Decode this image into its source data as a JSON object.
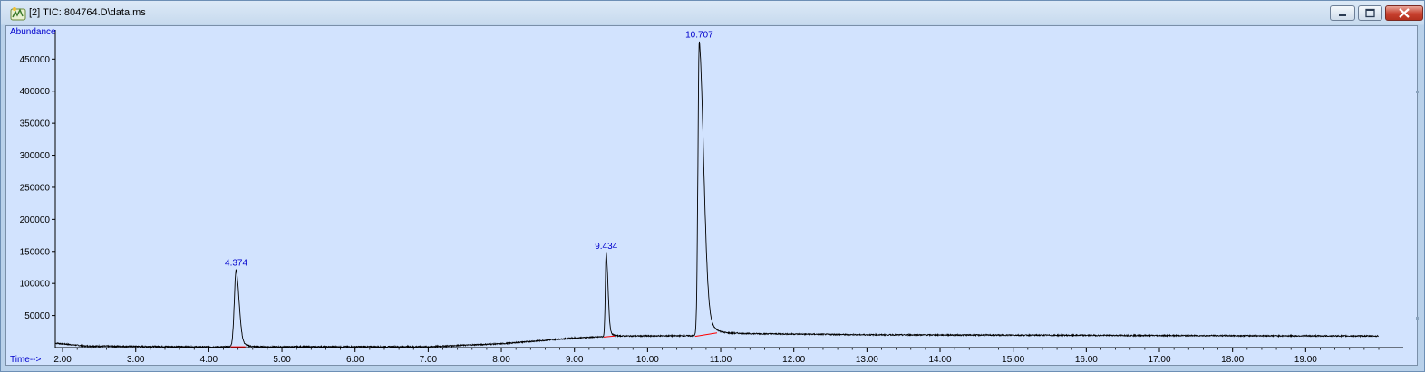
{
  "window": {
    "title": "[2] TIC: 804764.D\\data.ms",
    "icon": "chromatogram-app-icon"
  },
  "colors": {
    "plot_bg": "#d2e3fe",
    "label_blue": "#0000cc",
    "trace": "#000000",
    "baseline": "#ff0000",
    "close_red": "#c7402e"
  },
  "chart_data": {
    "type": "line",
    "ylabel": "Abundance",
    "xlabel": "Time-->",
    "xlim": [
      1.9,
      20.0
    ],
    "ylim": [
      0,
      490000
    ],
    "x_ticks": [
      "2.00",
      "3.00",
      "4.00",
      "5.00",
      "6.00",
      "7.00",
      "8.00",
      "9.00",
      "10.00",
      "11.00",
      "12.00",
      "13.00",
      "14.00",
      "15.00",
      "16.00",
      "17.00",
      "18.00",
      "19.00"
    ],
    "y_ticks": [
      "50000",
      "100000",
      "150000",
      "200000",
      "250000",
      "300000",
      "350000",
      "400000",
      "450000"
    ],
    "peaks": [
      {
        "label": "4.374",
        "time": 4.374,
        "height": 122000,
        "base": 1500,
        "left_width": 0.025,
        "right_width": 0.04
      },
      {
        "label": "9.434",
        "time": 9.434,
        "height": 148000,
        "base": 17000,
        "left_width": 0.012,
        "right_width": 0.025
      },
      {
        "label": "10.707",
        "time": 10.707,
        "height": 478000,
        "base": 18000,
        "left_width": 0.018,
        "right_width": 0.06
      }
    ],
    "baseline_points": [
      {
        "x": 1.9,
        "y": 7000
      },
      {
        "x": 2.3,
        "y": 2500
      },
      {
        "x": 4.0,
        "y": 1200
      },
      {
        "x": 7.0,
        "y": 1500
      },
      {
        "x": 8.0,
        "y": 6000
      },
      {
        "x": 9.0,
        "y": 15000
      },
      {
        "x": 9.6,
        "y": 18000
      },
      {
        "x": 10.6,
        "y": 18500
      },
      {
        "x": 11.2,
        "y": 22000
      },
      {
        "x": 13.0,
        "y": 20000
      },
      {
        "x": 20.0,
        "y": 18000
      }
    ],
    "integration_baselines": [
      {
        "x1": 4.3,
        "y1": 1200,
        "x2": 4.5,
        "y2": 1300
      },
      {
        "x1": 9.4,
        "y1": 16500,
        "x2": 9.55,
        "y2": 18000
      },
      {
        "x1": 10.65,
        "y1": 17500,
        "x2": 10.95,
        "y2": 23000
      }
    ]
  }
}
